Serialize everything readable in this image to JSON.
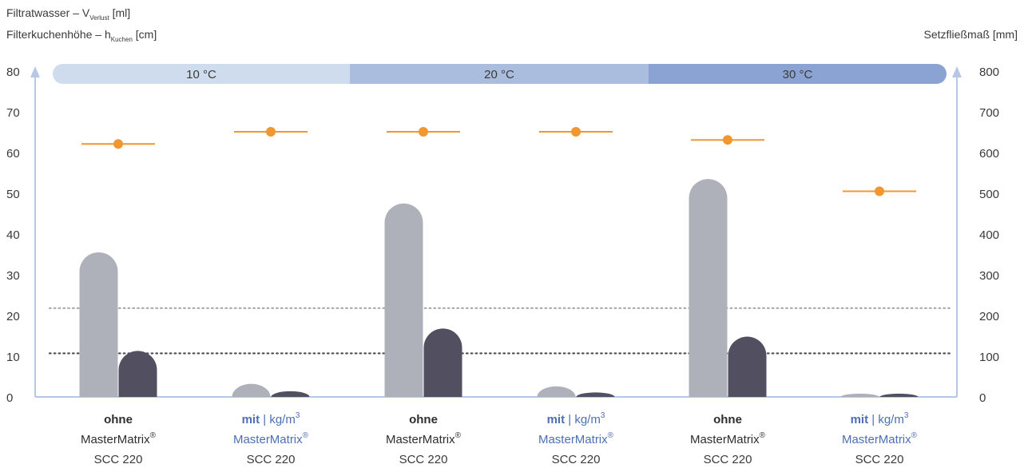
{
  "chart_data": {
    "type": "bar",
    "left_axis": {
      "title_line1": {
        "main": "Filtratwasser – V",
        "sub": "Verlust",
        "unit": " [ml]"
      },
      "title_line2": {
        "main": "Filterkuchenhöhe – h",
        "sub": "Kuchen",
        "unit": " [cm]"
      },
      "ylim": [
        0,
        80
      ],
      "ticks": [
        0,
        10,
        20,
        30,
        40,
        50,
        60,
        70,
        80
      ]
    },
    "right_axis": {
      "title": "Setzfließmaß [mm]",
      "ylim": [
        0,
        800
      ],
      "ticks": [
        0,
        100,
        200,
        300,
        400,
        500,
        600,
        700,
        800
      ]
    },
    "temperature_bands": [
      {
        "label": "10 °C",
        "color": "#cfdcee"
      },
      {
        "label": "20 °C",
        "color": "#aabddf"
      },
      {
        "label": "30 °C",
        "color": "#8aa3d2"
      }
    ],
    "categories": [
      {
        "strong": "ohne",
        "extra": "",
        "line2": "MasterMatrix",
        "sup": "®",
        "line3": "SCC 220",
        "highlight": false
      },
      {
        "strong": "mit",
        "extra": " | kg/m",
        "extra_sup": "3",
        "line2": "MasterMatrix",
        "sup": "®",
        "line3": "SCC 220",
        "highlight": true
      },
      {
        "strong": "ohne",
        "extra": "",
        "line2": "MasterMatrix",
        "sup": "®",
        "line3": "SCC 220",
        "highlight": false
      },
      {
        "strong": "mit",
        "extra": " | kg/m",
        "extra_sup": "3",
        "line2": "MasterMatrix",
        "sup": "®",
        "line3": "SCC 220",
        "highlight": true
      },
      {
        "strong": "ohne",
        "extra": "",
        "line2": "MasterMatrix",
        "sup": "®",
        "line3": "SCC 220",
        "highlight": false
      },
      {
        "strong": "mit",
        "extra": " | kg/m",
        "extra_sup": "3",
        "line2": "MasterMatrix",
        "sup": "®",
        "line3": "SCC 220",
        "highlight": true
      }
    ],
    "series": [
      {
        "axis": "left",
        "color": "#aeb1b9",
        "values": [
          35.5,
          3.2,
          47.5,
          2.6,
          53.5,
          0.8
        ]
      },
      {
        "axis": "left",
        "color": "#524f60",
        "values": [
          11.3,
          1.4,
          16.8,
          1.1,
          14.8,
          0.8
        ]
      },
      {
        "axis": "right",
        "marker": "dot-with-range",
        "color": "#f0972f",
        "values": [
          621,
          651,
          651,
          651,
          631,
          505
        ]
      }
    ],
    "reference_lines": [
      {
        "axis": "left",
        "value": 21.8,
        "color": "#a8a8a8",
        "style": "dotted"
      },
      {
        "axis": "left",
        "value": 10.7,
        "color": "#4a4a55",
        "style": "dotted"
      }
    ],
    "grid": false,
    "accent_color": "#4d6fb3"
  }
}
